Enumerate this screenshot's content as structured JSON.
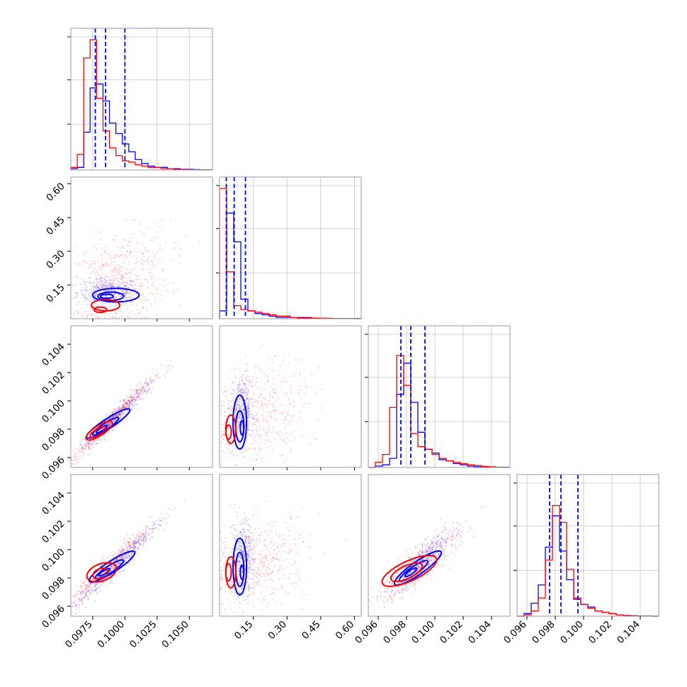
{
  "colors": {
    "series_a": "#0000ff",
    "series_b": "#ff0000",
    "grid": "#c4c4c4",
    "frame": "#9a9a9a"
  },
  "chart_data": {
    "type": "corner",
    "grid": true,
    "series": [
      {
        "color": "#0000ff"
      },
      {
        "color": "#ff0000"
      }
    ],
    "parameters": [
      {
        "range": [
          0.0958,
          0.1068
        ],
        "ticks": [
          0.0975,
          0.1,
          0.1025,
          0.105
        ],
        "tick_labels": [
          "0.0975",
          "0.1000",
          "0.1025",
          "0.1050"
        ],
        "quantiles": [
          0.0977,
          0.0985,
          0.1
        ]
      },
      {
        "range": [
          0.0,
          0.63
        ],
        "ticks": [
          0.15,
          0.3,
          0.45,
          0.6
        ],
        "tick_labels": [
          "0.15",
          "0.30",
          "0.45",
          "0.60"
        ],
        "quantiles": [
          0.03,
          0.065,
          0.115
        ]
      },
      {
        "range": [
          0.0953,
          0.1053
        ],
        "ticks": [
          0.096,
          0.098,
          0.1,
          0.102,
          0.104
        ],
        "tick_labels": [
          "0.096",
          "0.098",
          "0.100",
          "0.102",
          "0.104"
        ],
        "quantiles": [
          0.0976,
          0.0983,
          0.0993
        ]
      },
      {
        "range": [
          0.0953,
          0.1053
        ],
        "ticks": [
          0.096,
          0.098,
          0.1,
          0.102,
          0.104
        ],
        "tick_labels": [
          "0.096",
          "0.098",
          "0.100",
          "0.102",
          "0.104"
        ],
        "quantiles": [
          0.0976,
          0.0984,
          0.0996
        ]
      }
    ],
    "histograms": [
      {
        "param": 0,
        "ymax": 1.0,
        "ticks": [
          0.33,
          0.67,
          1.0
        ],
        "series": [
          {
            "counts": [
              0.01,
              0.02,
              0.29,
              0.63,
              0.66,
              0.53,
              0.36,
              0.28,
              0.2,
              0.14,
              0.08,
              0.05,
              0.03,
              0.02,
              0.02,
              0.01,
              0.01,
              0.005,
              0.005,
              0.003,
              0.002,
              0.001
            ]
          },
          {
            "counts": [
              0.02,
              0.12,
              0.86,
              1.0,
              0.55,
              0.3,
              0.17,
              0.11,
              0.07,
              0.06,
              0.04,
              0.03,
              0.02,
              0.02,
              0.01,
              0.01,
              0.005,
              0.004,
              0.003,
              0.002,
              0.001,
              0.001
            ]
          }
        ]
      },
      {
        "param": 1,
        "ymax": 1.0,
        "ticks": [
          0.33,
          0.67,
          1.0
        ],
        "series": [
          {
            "counts": [
              0.06,
              0.81,
              0.59,
              0.15,
              0.06,
              0.04,
              0.03,
              0.02,
              0.01,
              0.01,
              0.01,
              0.005,
              0.005,
              0.003,
              0.002,
              0.002,
              0.001,
              0.001,
              0.001,
              0.0
            ]
          },
          {
            "counts": [
              1.0,
              0.36,
              0.1,
              0.07,
              0.06,
              0.05,
              0.04,
              0.03,
              0.02,
              0.02,
              0.01,
              0.01,
              0.01,
              0.005,
              0.004,
              0.003,
              0.002,
              0.001,
              0.001,
              0.001
            ]
          }
        ]
      },
      {
        "param": 2,
        "ymax": 1.0,
        "ticks": [
          0.33,
          0.67,
          1.0
        ],
        "series": [
          {
            "counts": [
              0.0,
              0.01,
              0.02,
              0.07,
              0.56,
              0.8,
              0.5,
              0.27,
              0.14,
              0.11,
              0.06,
              0.05,
              0.03,
              0.02,
              0.01,
              0.005,
              0.003,
              0.002,
              0.001,
              0.0
            ]
          },
          {
            "counts": [
              0.0,
              0.04,
              0.1,
              0.46,
              0.86,
              0.63,
              0.26,
              0.16,
              0.14,
              0.1,
              0.07,
              0.05,
              0.04,
              0.03,
              0.02,
              0.015,
              0.008,
              0.005,
              0.002,
              0.001
            ]
          }
        ]
      },
      {
        "param": 3,
        "ymax": 1.0,
        "ticks": [
          0.33,
          0.67,
          1.0
        ],
        "series": [
          {
            "counts": [
              0.0,
              0.02,
              0.1,
              0.24,
              0.53,
              0.77,
              0.5,
              0.28,
              0.13,
              0.09,
              0.07,
              0.04,
              0.03,
              0.02,
              0.01,
              0.005,
              0.003,
              0.002,
              0.001,
              0.0
            ]
          },
          {
            "counts": [
              0.0,
              0.01,
              0.04,
              0.14,
              0.43,
              0.85,
              0.72,
              0.36,
              0.14,
              0.09,
              0.06,
              0.04,
              0.03,
              0.02,
              0.01,
              0.005,
              0.003,
              0.002,
              0.001,
              0.0
            ]
          }
        ]
      }
    ],
    "scatter_panels": [
      {
        "x_param": 0,
        "y_param": 1,
        "series": [
          {
            "cx": 0.0987,
            "cy": 0.12,
            "sx": 0.0012,
            "sy": 0.03,
            "rho": 0.05,
            "n": 420,
            "contours": [
              {
                "cx": 0.0993,
                "cy": 0.105,
                "rx": 0.0018,
                "ry": 0.03,
                "angle": 0
              },
              {
                "cx": 0.0989,
                "cy": 0.1,
                "rx": 0.001,
                "ry": 0.018,
                "angle": 0
              },
              {
                "cx": 0.0986,
                "cy": 0.1,
                "rx": 0.0005,
                "ry": 0.009,
                "angle": 0
              }
            ]
          },
          {
            "cx": 0.0995,
            "cy": 0.17,
            "sx": 0.002,
            "sy": 0.11,
            "rho": 0.25,
            "n": 560,
            "contours": [
              {
                "cx": 0.0985,
                "cy": 0.06,
                "rx": 0.0011,
                "ry": 0.025,
                "angle": 0
              },
              {
                "cx": 0.0981,
                "cy": 0.04,
                "rx": 0.0005,
                "ry": 0.012,
                "angle": 0
              }
            ]
          }
        ]
      },
      {
        "x_param": 0,
        "y_param": 2,
        "series": [
          {
            "cx": 0.0992,
            "cy": 0.0988,
            "sx": 0.0015,
            "sy": 0.0013,
            "rho": 0.97,
            "n": 480,
            "contours": [
              {
                "cx": 0.0987,
                "cy": 0.0984,
                "rx": 0.002,
                "ry": 0.00035,
                "angle": -33
              },
              {
                "cx": 0.0985,
                "cy": 0.0982,
                "rx": 0.0012,
                "ry": 0.00022,
                "angle": -33
              },
              {
                "cx": 0.0982,
                "cy": 0.098,
                "rx": 0.0005,
                "ry": 0.00012,
                "angle": -33
              }
            ]
          },
          {
            "cx": 0.099,
            "cy": 0.0987,
            "sx": 0.0016,
            "sy": 0.0015,
            "rho": 0.98,
            "n": 480,
            "contours": [
              {
                "cx": 0.098,
                "cy": 0.0979,
                "rx": 0.0012,
                "ry": 0.00035,
                "angle": -33
              },
              {
                "cx": 0.0979,
                "cy": 0.0978,
                "rx": 0.0007,
                "ry": 0.00022,
                "angle": -33
              }
            ]
          }
        ]
      },
      {
        "x_param": 0,
        "y_param": 3,
        "series": [
          {
            "cx": 0.0994,
            "cy": 0.099,
            "sx": 0.0016,
            "sy": 0.0015,
            "rho": 0.97,
            "n": 480,
            "contours": [
              {
                "cx": 0.099,
                "cy": 0.0988,
                "rx": 0.0021,
                "ry": 0.0004,
                "angle": -33
              },
              {
                "cx": 0.0988,
                "cy": 0.0986,
                "rx": 0.0013,
                "ry": 0.00025,
                "angle": -33
              },
              {
                "cx": 0.0984,
                "cy": 0.0984,
                "rx": 0.0005,
                "ry": 0.00012,
                "angle": -33
              }
            ]
          },
          {
            "cx": 0.0989,
            "cy": 0.0989,
            "sx": 0.0016,
            "sy": 0.0014,
            "rho": 0.96,
            "n": 480,
            "contours": [
              {
                "cx": 0.0982,
                "cy": 0.0984,
                "rx": 0.0012,
                "ry": 0.0006,
                "angle": -20
              },
              {
                "cx": 0.0981,
                "cy": 0.0983,
                "rx": 0.0006,
                "ry": 0.00035,
                "angle": -20
              }
            ]
          }
        ]
      },
      {
        "x_param": 1,
        "y_param": 2,
        "series": [
          {
            "cx": 0.1,
            "cy": 0.0992,
            "sx": 0.025,
            "sy": 0.0012,
            "rho": 0.1,
            "n": 400,
            "contours": [
              {
                "cx": 0.09,
                "cy": 0.0985,
                "rx": 0.03,
                "ry": 0.0019,
                "angle": 0
              },
              {
                "cx": 0.09,
                "cy": 0.0982,
                "rx": 0.018,
                "ry": 0.0011,
                "angle": 0
              },
              {
                "cx": 0.1,
                "cy": 0.0981,
                "rx": 0.008,
                "ry": 0.0005,
                "angle": 0
              }
            ]
          },
          {
            "cx": 0.17,
            "cy": 0.099,
            "sx": 0.11,
            "sy": 0.0018,
            "rho": 0.2,
            "n": 520,
            "contours": [
              {
                "cx": 0.05,
                "cy": 0.098,
                "rx": 0.022,
                "ry": 0.001,
                "angle": 0
              },
              {
                "cx": 0.04,
                "cy": 0.0978,
                "rx": 0.012,
                "ry": 0.0005,
                "angle": 0
              }
            ]
          }
        ]
      },
      {
        "x_param": 1,
        "y_param": 3,
        "series": [
          {
            "cx": 0.1,
            "cy": 0.0994,
            "sx": 0.025,
            "sy": 0.0013,
            "rho": 0.1,
            "n": 400,
            "contours": [
              {
                "cx": 0.09,
                "cy": 0.0988,
                "rx": 0.03,
                "ry": 0.002,
                "angle": 0
              },
              {
                "cx": 0.09,
                "cy": 0.0986,
                "rx": 0.018,
                "ry": 0.0012,
                "angle": 0
              },
              {
                "cx": 0.1,
                "cy": 0.0984,
                "rx": 0.008,
                "ry": 0.0005,
                "angle": 0
              }
            ]
          },
          {
            "cx": 0.17,
            "cy": 0.099,
            "sx": 0.11,
            "sy": 0.0016,
            "rho": 0.2,
            "n": 520,
            "contours": [
              {
                "cx": 0.05,
                "cy": 0.0984,
                "rx": 0.022,
                "ry": 0.0011,
                "angle": 0
              },
              {
                "cx": 0.04,
                "cy": 0.0984,
                "rx": 0.012,
                "ry": 0.0006,
                "angle": 0
              }
            ]
          }
        ]
      },
      {
        "x_param": 2,
        "y_param": 3,
        "series": [
          {
            "cx": 0.099,
            "cy": 0.0991,
            "sx": 0.0012,
            "sy": 0.0012,
            "rho": 0.9,
            "n": 480,
            "contours": [
              {
                "cx": 0.0988,
                "cy": 0.0987,
                "rx": 0.002,
                "ry": 0.00045,
                "angle": -35
              },
              {
                "cx": 0.0985,
                "cy": 0.0985,
                "rx": 0.0012,
                "ry": 0.00028,
                "angle": -35
              },
              {
                "cx": 0.0983,
                "cy": 0.0984,
                "rx": 0.0005,
                "ry": 0.00014,
                "angle": -35
              }
            ]
          },
          {
            "cx": 0.0989,
            "cy": 0.0989,
            "sx": 0.0014,
            "sy": 0.0012,
            "rho": 0.85,
            "n": 500,
            "contours": [
              {
                "cx": 0.0982,
                "cy": 0.0985,
                "rx": 0.0021,
                "ry": 0.0007,
                "angle": -25
              },
              {
                "cx": 0.098,
                "cy": 0.0984,
                "rx": 0.0012,
                "ry": 0.00045,
                "angle": -25
              }
            ]
          }
        ]
      }
    ]
  }
}
